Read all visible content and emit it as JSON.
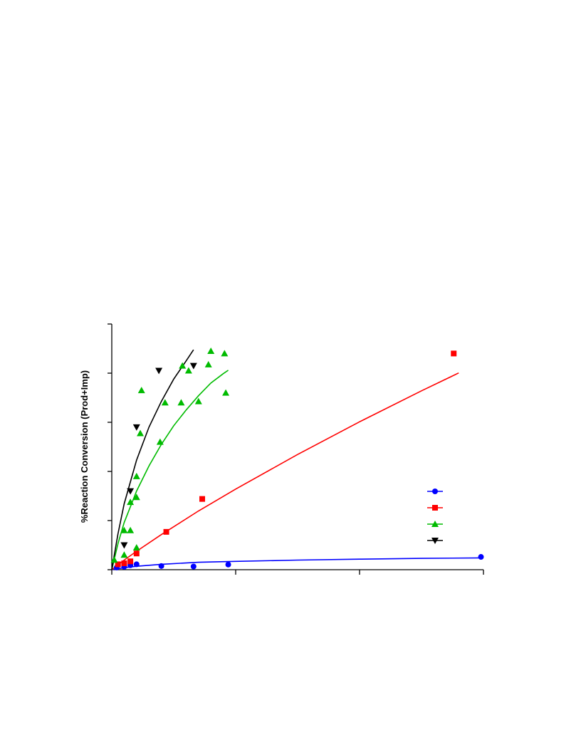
{
  "chart_data": {
    "type": "scatter",
    "ylabel": "%Reaction Conversion  (Prod+Imp)",
    "xlabel": "",
    "title": "",
    "xlim": [
      0,
      30
    ],
    "ylim": [
      0,
      100
    ],
    "x_ticks": [
      0,
      10,
      20,
      30
    ],
    "y_ticks": [
      0,
      20,
      40,
      60,
      80,
      100
    ],
    "legend_position": "right",
    "series": [
      {
        "color": "#0000ff",
        "marker": "circle",
        "points": [
          [
            0.4,
            0.9
          ],
          [
            1.0,
            1.2
          ],
          [
            1.5,
            1.8
          ],
          [
            2.0,
            2.2
          ],
          [
            4.0,
            1.5
          ],
          [
            6.6,
            1.3
          ],
          [
            9.4,
            2.1
          ],
          [
            29.8,
            5.2
          ]
        ],
        "fit": [
          [
            0,
            0
          ],
          [
            1,
            0.8
          ],
          [
            2,
            1.4
          ],
          [
            4,
            2.2
          ],
          [
            7,
            3.0
          ],
          [
            10,
            3.4
          ],
          [
            15,
            3.9
          ],
          [
            20,
            4.3
          ],
          [
            25,
            4.6
          ],
          [
            30,
            4.8
          ]
        ]
      },
      {
        "color": "#ff0000",
        "marker": "square",
        "points": [
          [
            0.5,
            2.2
          ],
          [
            1.0,
            2.6
          ],
          [
            1.5,
            3.4
          ],
          [
            2.0,
            6.6
          ],
          [
            4.4,
            15.4
          ],
          [
            7.3,
            28.8
          ],
          [
            27.6,
            88.0
          ]
        ],
        "fit": [
          [
            0,
            0
          ],
          [
            1,
            3.9
          ],
          [
            2,
            7.5
          ],
          [
            4,
            14.3
          ],
          [
            7,
            23.9
          ],
          [
            10,
            32.8
          ],
          [
            15,
            46.9
          ],
          [
            20,
            60.2
          ],
          [
            25,
            72.8
          ],
          [
            27.6,
            79.1
          ],
          [
            28,
            80.1
          ]
        ]
      },
      {
        "color": "#00bb00",
        "marker": "triangle-up",
        "points": [
          [
            0.2,
            4.0
          ],
          [
            1.0,
            6.0
          ],
          [
            1.0,
            16.0
          ],
          [
            1.5,
            16.0
          ],
          [
            2.0,
            9.0
          ],
          [
            1.5,
            27.5
          ],
          [
            2.0,
            29.5
          ],
          [
            2.0,
            38.0
          ],
          [
            2.3,
            55.5
          ],
          [
            2.4,
            73.0
          ],
          [
            3.9,
            52.0
          ],
          [
            4.3,
            68.0
          ],
          [
            5.6,
            68.0
          ],
          [
            5.7,
            83.0
          ],
          [
            6.2,
            81.0
          ],
          [
            7.0,
            68.5
          ],
          [
            7.8,
            83.5
          ],
          [
            8.0,
            89.0
          ],
          [
            9.1,
            88.0
          ],
          [
            9.2,
            72.0
          ]
        ],
        "fit": [
          [
            0,
            0
          ],
          [
            0.5,
            10.6
          ],
          [
            1,
            19.2
          ],
          [
            2,
            32.0
          ],
          [
            3,
            42.2
          ],
          [
            4,
            51.0
          ],
          [
            5,
            58.6
          ],
          [
            6,
            65.0
          ],
          [
            7,
            70.8
          ],
          [
            8,
            76.0
          ],
          [
            9,
            79.8
          ],
          [
            9.4,
            81.2
          ]
        ]
      },
      {
        "color": "#000000",
        "marker": "triangle-down",
        "points": [
          [
            1.0,
            10.0
          ],
          [
            1.5,
            32.0
          ],
          [
            2.0,
            58.0
          ],
          [
            3.8,
            81.0
          ],
          [
            6.6,
            83.0
          ]
        ],
        "fit": [
          [
            0,
            0
          ],
          [
            0.5,
            14.6
          ],
          [
            1,
            26.8
          ],
          [
            2,
            44.6
          ],
          [
            3,
            58.0
          ],
          [
            4,
            68.5
          ],
          [
            5,
            77.6
          ],
          [
            6,
            85.0
          ],
          [
            6.6,
            89.5
          ]
        ]
      }
    ]
  }
}
